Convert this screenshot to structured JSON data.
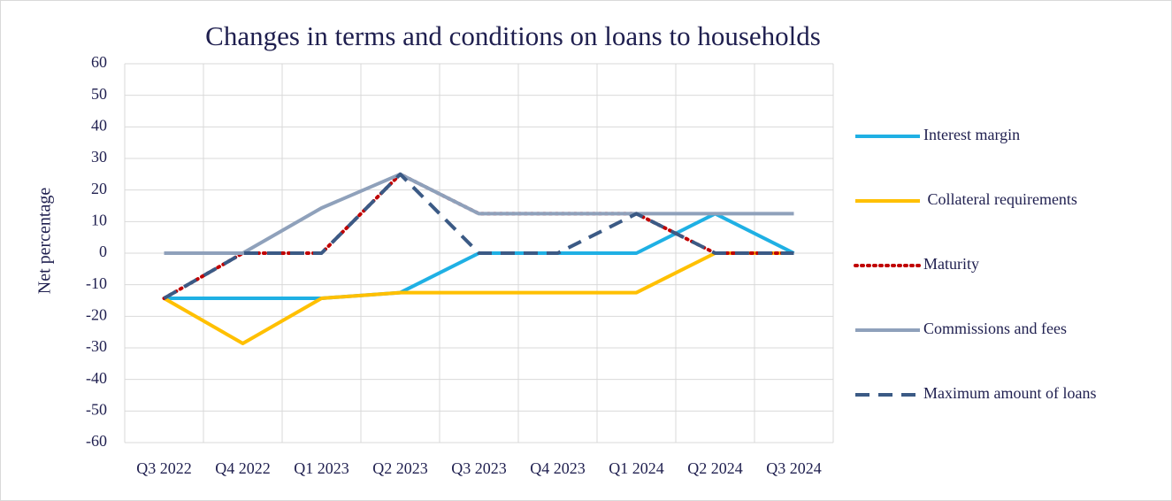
{
  "chart_data": {
    "type": "line",
    "title": "Changes in terms and conditions on loans to households",
    "y_label": "Net percentage",
    "categories": [
      "Q3 2022",
      "Q4 2022",
      "Q1 2023",
      "Q2 2023",
      "Q3 2023",
      "Q4 2023",
      "Q1 2024",
      "Q2 2024",
      "Q3 2024"
    ],
    "series": [
      {
        "name": "Interest margin",
        "color": "#1fb0e4",
        "dash": "solid",
        "values": [
          -14.3,
          -14.3,
          -14.3,
          -12.5,
          0,
          0,
          0,
          12.5,
          0
        ]
      },
      {
        "name": " Collateral requirements",
        "color": "#ffc000",
        "dash": "solid",
        "values": [
          -14.3,
          -28.6,
          -14.3,
          -12.5,
          -12.5,
          -12.5,
          -12.5,
          0,
          0
        ]
      },
      {
        "name": "Maturity",
        "color": "#c00000",
        "dash": "dotted",
        "values": [
          -14.3,
          0,
          0,
          25,
          12.5,
          12.5,
          12.5,
          0,
          0
        ]
      },
      {
        "name": "Commissions and fees",
        "color": "#8fa1bb",
        "dash": "solid",
        "values": [
          0,
          0,
          14.3,
          25,
          12.5,
          12.5,
          12.5,
          12.5,
          12.5
        ]
      },
      {
        "name": "Maximum amount of loans",
        "color": "#3b5a85",
        "dash": "dashed",
        "values": [
          -14.3,
          0,
          0,
          25,
          0,
          0,
          12.5,
          0,
          0
        ]
      }
    ],
    "ylim": [
      -60,
      60
    ],
    "yticks": [
      -60,
      -50,
      -40,
      -30,
      -20,
      -10,
      0,
      10,
      20,
      30,
      40,
      50,
      60
    ],
    "grid": true,
    "legend": "right"
  }
}
